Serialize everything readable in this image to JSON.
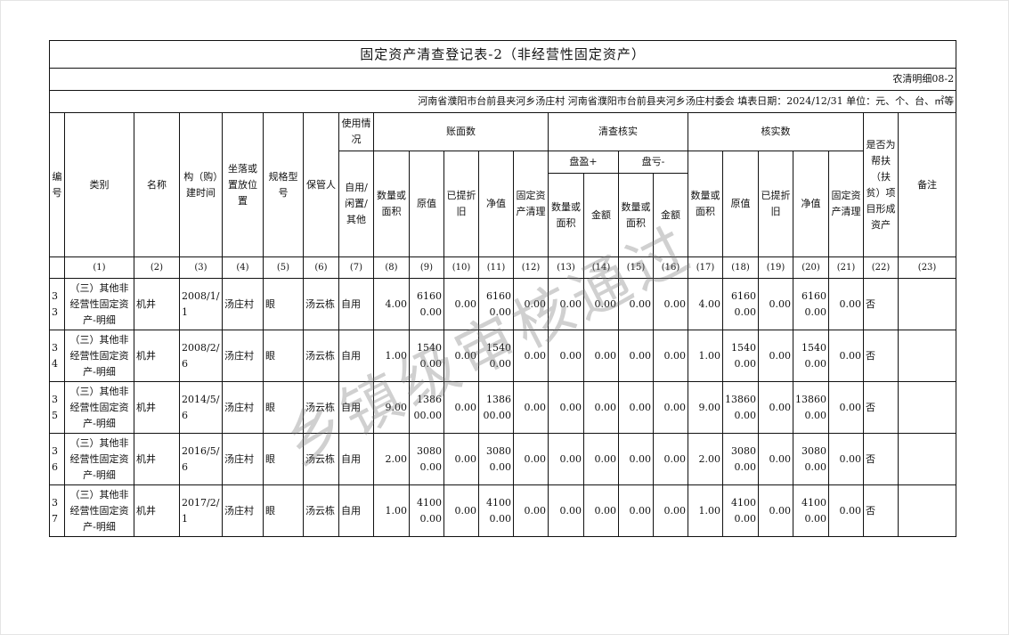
{
  "title": "固定资产清查登记表-2（非经营性固定资产）",
  "form_code": "农清明细08-2",
  "info_line": "河南省濮阳市台前县夹河乡汤庄村  河南省濮阳市台前县夹河乡汤庄村委会  填表日期：2024/12/31   单位：元、个、台、㎡等",
  "headers": {
    "no": "编号",
    "category": "类别",
    "name": "名称",
    "build_time": "构（购）建时间",
    "location": "坐落或置放位置",
    "spec": "规格型号",
    "keeper": "保管人",
    "usage": "使用情况",
    "usage_sub": "自用/闲置/其他",
    "book": "账面数",
    "check": "清查核实",
    "verified": "核实数",
    "surplus": "盘盈+",
    "deficit": "盘亏-",
    "qty": "数量或面积",
    "orig": "原值",
    "depr": "已提折旧",
    "net": "净值",
    "clear": "固定资产清理",
    "amount": "金额",
    "poverty": "是否为帮扶（扶贫）项目形成资产",
    "remark": "备注"
  },
  "col_numbers": [
    "",
    "(1)",
    "(2)",
    "(3)",
    "(4)",
    "(5)",
    "(6)",
    "(7)",
    "(8)",
    "(9)",
    "(10)",
    "(11)",
    "(12)",
    "(13)",
    "(14)",
    "(15)",
    "(16)",
    "(17)",
    "(18)",
    "(19)",
    "(20)",
    "(21)",
    "(22)",
    "(23)"
  ],
  "rows": [
    [
      "33",
      "（三）其他非经营性固定资产-明细",
      "机井",
      "2008/1/1",
      "汤庄村",
      "眼",
      "汤云栋",
      "自用",
      "4.00",
      "61600.00",
      "0.00",
      "61600.00",
      "0.00",
      "0.00",
      "0.00",
      "0.00",
      "0.00",
      "4.00",
      "61600.00",
      "0.00",
      "61600.00",
      "0.00",
      "否",
      ""
    ],
    [
      "34",
      "（三）其他非经营性固定资产-明细",
      "机井",
      "2008/2/6",
      "汤庄村",
      "眼",
      "汤云栋",
      "自用",
      "1.00",
      "15400.00",
      "0.00",
      "15400.00",
      "0.00",
      "0.00",
      "0.00",
      "0.00",
      "0.00",
      "1.00",
      "15400.00",
      "0.00",
      "15400.00",
      "0.00",
      "否",
      ""
    ],
    [
      "35",
      "（三）其他非经营性固定资产-明细",
      "机井",
      "2014/5/6",
      "汤庄村",
      "眼",
      "汤云栋",
      "自用",
      "9.00",
      "138600.00",
      "0.00",
      "138600.00",
      "0.00",
      "0.00",
      "0.00",
      "0.00",
      "0.00",
      "9.00",
      "138600.00",
      "0.00",
      "138600.00",
      "0.00",
      "否",
      ""
    ],
    [
      "36",
      "（三）其他非经营性固定资产-明细",
      "机井",
      "2016/5/6",
      "汤庄村",
      "眼",
      "汤云栋",
      "自用",
      "2.00",
      "30800.00",
      "0.00",
      "30800.00",
      "0.00",
      "0.00",
      "0.00",
      "0.00",
      "0.00",
      "2.00",
      "30800.00",
      "0.00",
      "30800.00",
      "0.00",
      "否",
      ""
    ],
    [
      "37",
      "（三）其他非经营性固定资产-明细",
      "机井",
      "2017/2/1",
      "汤庄村",
      "眼",
      "汤云栋",
      "自用",
      "1.00",
      "41000.00",
      "0.00",
      "41000.00",
      "0.00",
      "0.00",
      "0.00",
      "0.00",
      "0.00",
      "1.00",
      "41000.00",
      "0.00",
      "41000.00",
      "0.00",
      "否",
      ""
    ]
  ],
  "watermark": "乡镇级审核通过"
}
